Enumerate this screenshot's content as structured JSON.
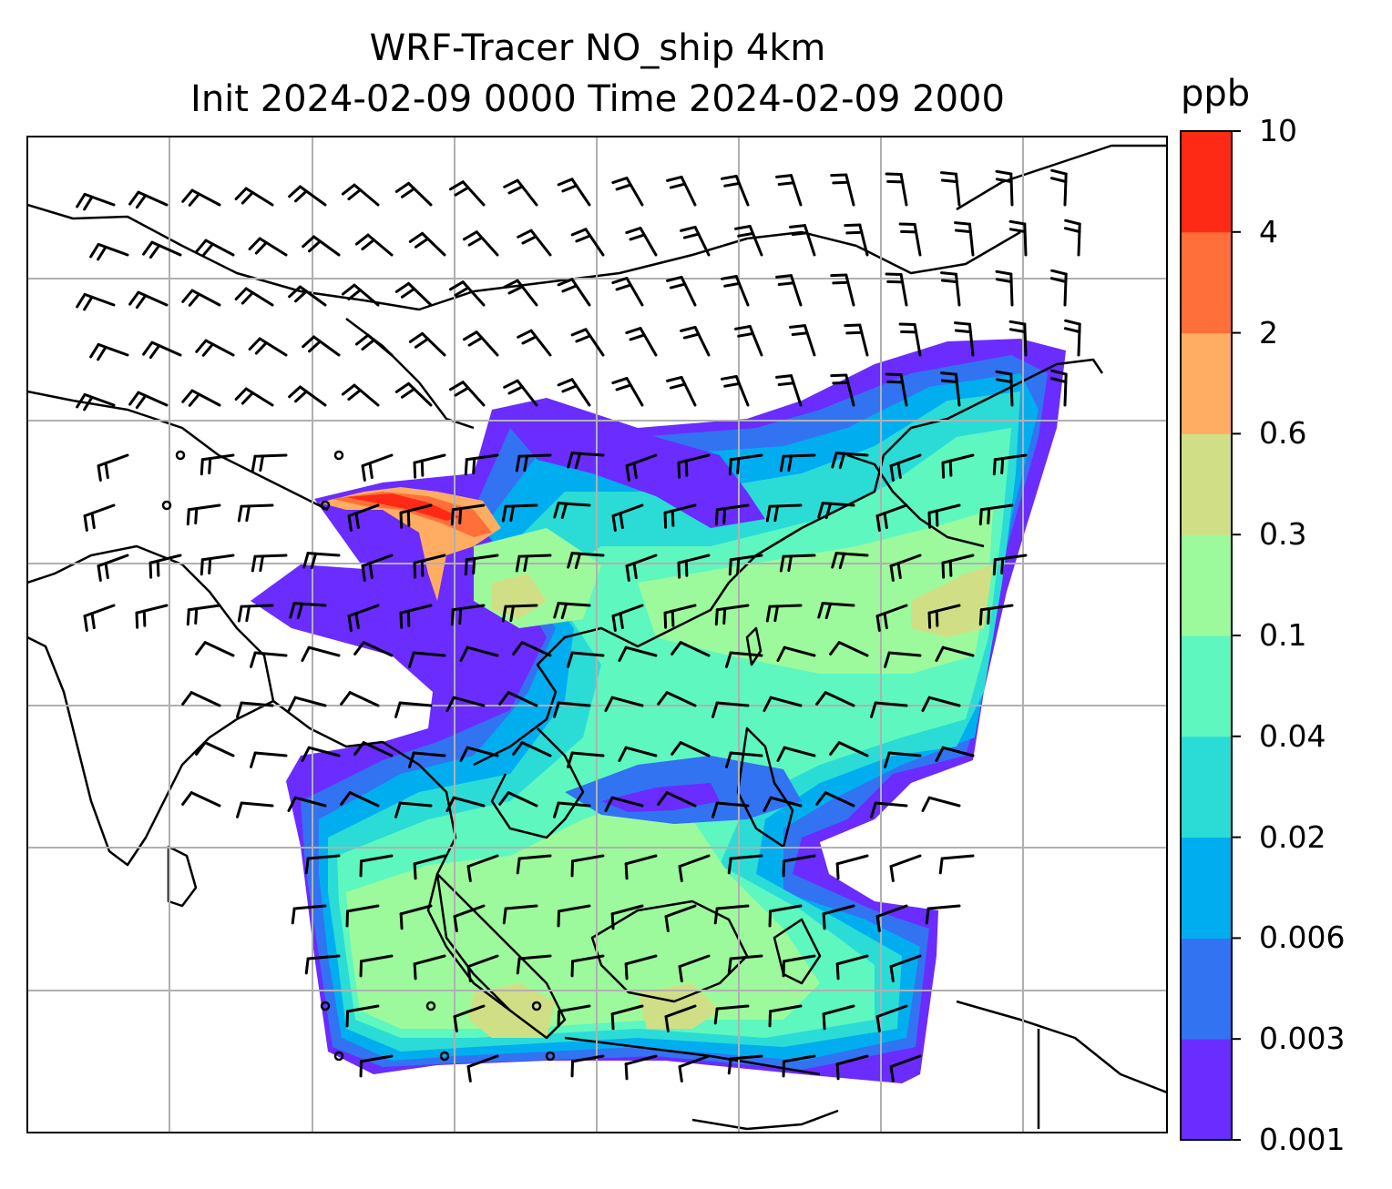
{
  "chart_data": {
    "type": "heatmap",
    "title": "WRF-Tracer NO_ship 4km",
    "subtitle": "Init 2024-02-09 0000 Time 2024-02-09 2000",
    "xlabel": "",
    "ylabel": "",
    "grid": true,
    "colorbar": {
      "unit": "ppb",
      "levels": [
        "0.001",
        "0.003",
        "0.006",
        "0.02",
        "0.04",
        "0.1",
        "0.3",
        "0.6",
        "2",
        "4",
        "10"
      ],
      "colors": [
        "#6a2cff",
        "#3273f2",
        "#00aef0",
        "#2bdcd6",
        "#5ef7c0",
        "#9dfa9c",
        "#d0df86",
        "#ffad62",
        "#ff6f3a",
        "#ff2a16"
      ]
    },
    "overlays": [
      "coastlines",
      "country borders",
      "wind barbs"
    ]
  },
  "colors": {
    "gridline": "#b0b0b0",
    "frame": "#000000",
    "coast": "#000000"
  }
}
